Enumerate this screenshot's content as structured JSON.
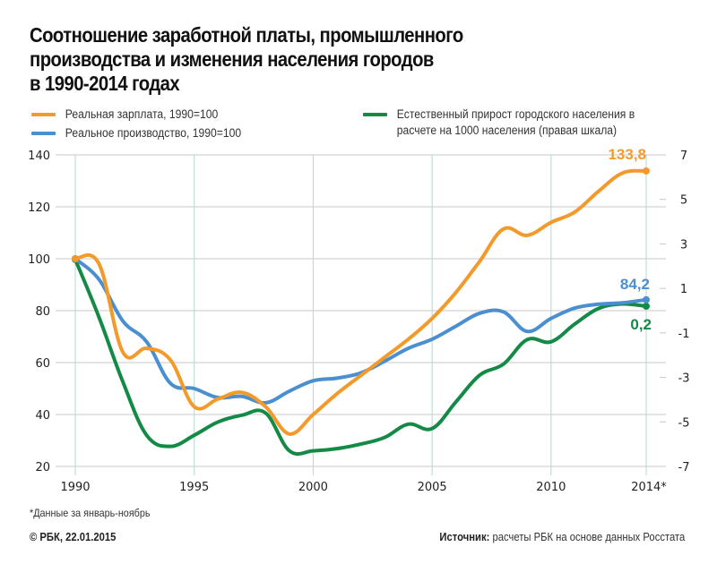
{
  "title": "Соотношение заработной платы, промышленного производства и изменения населения городов в 1990-2014 годах",
  "title_lines": [
    "Соотношение заработной платы, промышленного",
    "производства и изменения населения городов",
    "в 1990-2014 годах"
  ],
  "legend": [
    {
      "label": "Реальная зарплата, 1990=100",
      "color": "#f39a2b"
    },
    {
      "label": "Реальное производство, 1990=100",
      "color": "#4a8fd0"
    },
    {
      "label": "Естественный прирост городского населения в расчете на 1000 населения (правая шкала)",
      "color": "#138a46"
    }
  ],
  "footnote": "*Данные за январь-ноябрь",
  "copyright": "© РБК, 22.01.2015",
  "source_label": "Источник:",
  "source_text": " расчеты РБК на основе данных Росстата",
  "chart_data": {
    "type": "line",
    "title": "Соотношение заработной платы, промышленного производства и изменения населения городов в 1990-2014 годах",
    "xlabel": "",
    "ylabel": "",
    "x": [
      1990,
      1991,
      1992,
      1993,
      1994,
      1995,
      1996,
      1997,
      1998,
      1999,
      2000,
      2001,
      2002,
      2003,
      2004,
      2005,
      2006,
      2007,
      2008,
      2009,
      2010,
      2011,
      2012,
      2013,
      2014
    ],
    "x_ticks": [
      1990,
      1995,
      2000,
      2005,
      2010,
      2014
    ],
    "x_tick_labels": [
      "1990",
      "1995",
      "2000",
      "2005",
      "2010",
      "2014*"
    ],
    "xlim": [
      1990,
      2014
    ],
    "ylim": [
      20,
      140
    ],
    "y_ticks": [
      20,
      40,
      60,
      80,
      100,
      120,
      140
    ],
    "y2lim": [
      -7,
      7
    ],
    "y2_ticks": [
      7,
      5,
      3,
      1,
      -1,
      -3,
      -5,
      -7
    ],
    "grid": true,
    "legend_position": "top",
    "series": [
      {
        "name": "Реальная зарплата, 1990=100",
        "axis": "left",
        "color": "#f39a2b",
        "values": [
          100,
          98,
          64,
          65.5,
          61,
          43,
          46,
          48.5,
          43,
          32.5,
          40,
          48,
          55,
          62,
          69,
          77,
          87,
          99,
          111.5,
          109,
          114,
          118,
          126,
          133,
          133.8
        ],
        "end_label": "133,8"
      },
      {
        "name": "Реальное производство, 1990=100",
        "axis": "left",
        "color": "#4a8fd0",
        "values": [
          100,
          92,
          76,
          68,
          52,
          50,
          46.5,
          47,
          44.5,
          49,
          53,
          54,
          56,
          60.5,
          65.5,
          69,
          74,
          79,
          79.5,
          72,
          77,
          81,
          82.5,
          83,
          84.2
        ],
        "end_label": "84,2"
      },
      {
        "name": "Естественный прирост городского населения в расчете на 1000 населения (правая шкала)",
        "axis": "right",
        "color": "#138a46",
        "values": [
          2.3,
          -0.3,
          -3.2,
          -5.6,
          -6.1,
          -5.6,
          -5.0,
          -4.7,
          -4.6,
          -6.3,
          -6.3,
          -6.2,
          -6.0,
          -5.7,
          -5.1,
          -5.3,
          -4.1,
          -2.9,
          -2.4,
          -1.3,
          -1.4,
          -0.6,
          0.1,
          0.3,
          0.2
        ],
        "end_label": "0,2"
      }
    ],
    "annotations": [
      "133,8",
      "84,2",
      "0,2"
    ]
  }
}
